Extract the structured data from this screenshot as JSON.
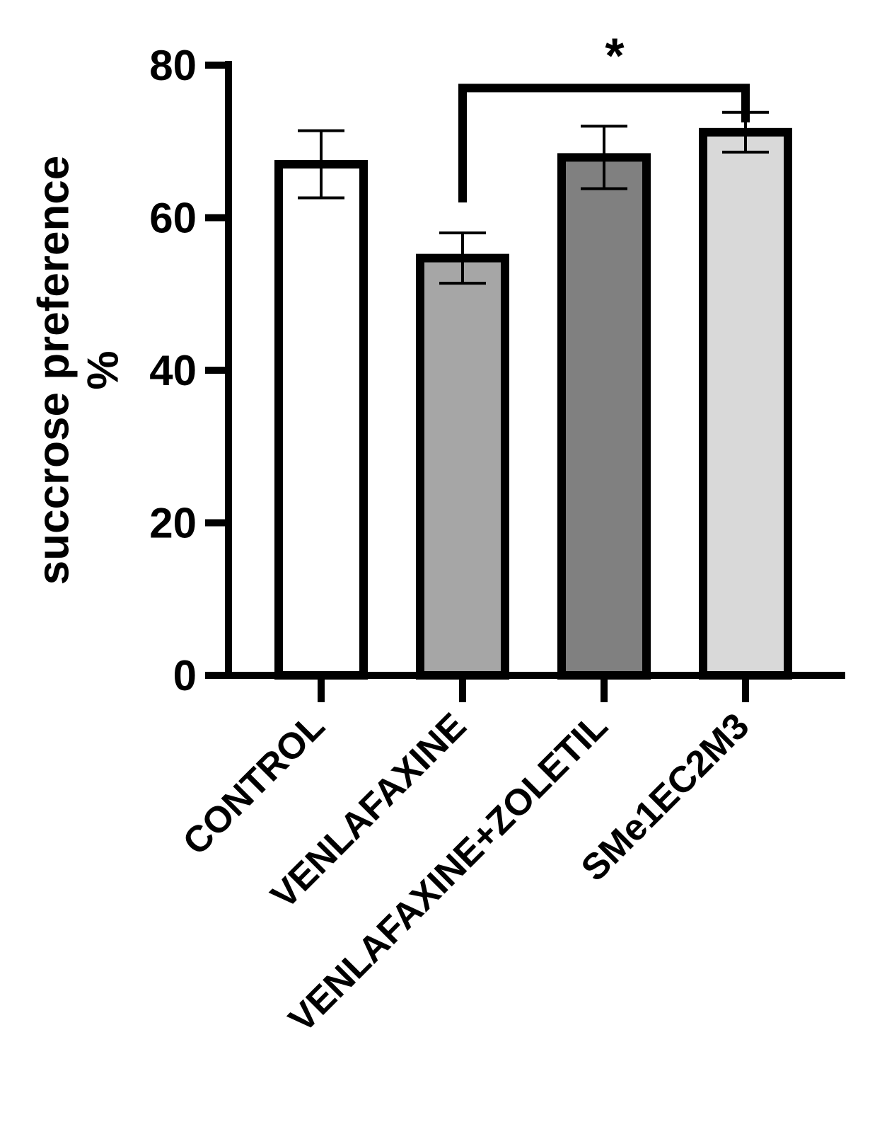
{
  "chart_data": {
    "type": "bar",
    "categories": [
      "CONTROL",
      "VENLAFAXINE",
      "VENLAFAXINE+ZOLETIL",
      "SMe1EC2M3"
    ],
    "values": [
      67,
      54.7,
      67.9,
      71.2
    ],
    "errors": [
      4.4,
      3.3,
      4.1,
      2.6
    ],
    "bar_colors": [
      "#ffffff",
      "#a6a6a6",
      "#808080",
      "#d9d9d9"
    ],
    "ylabel": "succrose preference %",
    "ylabel_lines": [
      "succrose preference",
      "%"
    ],
    "ylim": [
      0,
      80
    ],
    "yticks": [
      0,
      20,
      40,
      60,
      80
    ],
    "ytick_labels": [
      "0",
      "20",
      "40",
      "60",
      "80"
    ],
    "grid": false,
    "legend": "none",
    "significance": {
      "from_category": 1,
      "to_category": 3,
      "bracket_y": 77,
      "left_leg_bottom": 62,
      "right_leg_bottom": 72.5,
      "label": "*"
    }
  }
}
